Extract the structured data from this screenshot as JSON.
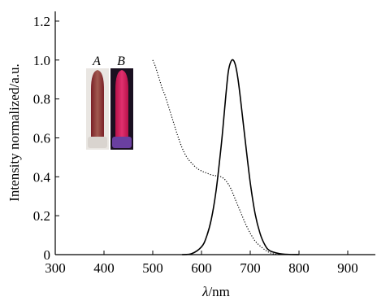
{
  "chart_data": {
    "type": "line",
    "title": "",
    "xlabel_symbol": "λ",
    "xlabel_unit": "/nm",
    "ylabel": "Intensity normalized/a.u.",
    "xlim": [
      300,
      930
    ],
    "ylim": [
      0,
      1.25
    ],
    "xticks": [
      300,
      400,
      500,
      600,
      700,
      800,
      900
    ],
    "xtick_labels": [
      "300",
      "400",
      "500",
      "600",
      "700",
      "800",
      "900"
    ],
    "yticks": [
      0,
      0.2,
      0.4,
      0.6,
      0.8,
      1.0,
      1.2
    ],
    "ytick_labels": [
      "0",
      "0.2",
      "0.4",
      "0.6",
      "0.8",
      "1.0",
      "1.2"
    ],
    "grid": false,
    "legend": "none",
    "series": [
      {
        "style": "dotted",
        "x": [
          500,
          505,
          510,
          515,
          520,
          525,
          530,
          535,
          540,
          545,
          550,
          560,
          570,
          580,
          590,
          600,
          610,
          620,
          630,
          640,
          650,
          660,
          670,
          680,
          690,
          700,
          710,
          720,
          730,
          740,
          750,
          760
        ],
        "y": [
          1.0,
          0.97,
          0.93,
          0.89,
          0.85,
          0.82,
          0.78,
          0.74,
          0.7,
          0.66,
          0.62,
          0.55,
          0.5,
          0.47,
          0.445,
          0.43,
          0.42,
          0.41,
          0.405,
          0.4,
          0.38,
          0.34,
          0.28,
          0.22,
          0.16,
          0.11,
          0.07,
          0.045,
          0.025,
          0.01,
          0.003,
          0.0
        ]
      },
      {
        "style": "solid",
        "x": [
          560,
          580,
          600,
          610,
          620,
          630,
          640,
          645,
          650,
          655,
          660,
          665,
          670,
          675,
          680,
          690,
          700,
          710,
          720,
          730,
          740,
          760,
          780,
          800
        ],
        "y": [
          0.0,
          0.005,
          0.04,
          0.09,
          0.18,
          0.33,
          0.55,
          0.68,
          0.82,
          0.94,
          0.99,
          1.0,
          0.97,
          0.9,
          0.8,
          0.58,
          0.37,
          0.21,
          0.11,
          0.05,
          0.02,
          0.005,
          0.001,
          0.0
        ]
      }
    ],
    "inset_photos": [
      {
        "label": "A",
        "glass": "#a15a50",
        "glow": "#7a1f26",
        "base": "#d9d4cf"
      },
      {
        "label": "B",
        "glass": "#e0306e",
        "glow": "#b8124a",
        "base": "#6a3fa0"
      }
    ]
  }
}
